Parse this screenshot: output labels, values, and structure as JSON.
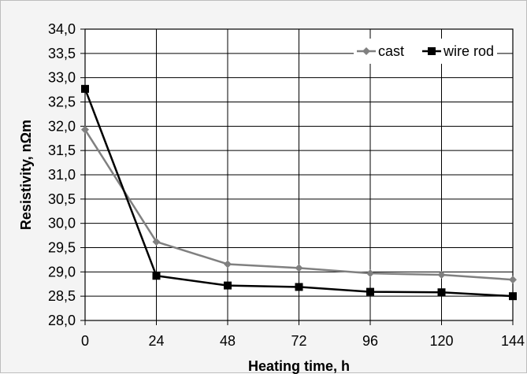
{
  "chart_data": {
    "type": "line",
    "title": "",
    "xlabel": "Heating time, h",
    "ylabel": "Resistivity, nΩm",
    "x": [
      0,
      24,
      48,
      72,
      96,
      120,
      144
    ],
    "x_tick_labels": [
      "0",
      "24",
      "48",
      "72",
      "96",
      "120",
      "144"
    ],
    "y_tick_labels": [
      "28,0",
      "28,5",
      "29,0",
      "29,5",
      "30,0",
      "30,5",
      "31,0",
      "31,5",
      "32,0",
      "32,5",
      "33,0",
      "33,5",
      "34,0"
    ],
    "xlim": [
      0,
      144
    ],
    "ylim": [
      28.0,
      34.0
    ],
    "grid": true,
    "legend_position": "top-right",
    "series": [
      {
        "name": "cast",
        "values": [
          31.93,
          29.62,
          29.16,
          29.08,
          28.97,
          28.94,
          28.84
        ],
        "color": "#808080",
        "marker": "diamond"
      },
      {
        "name": "wire rod",
        "values": [
          32.77,
          28.92,
          28.72,
          28.69,
          28.59,
          28.58,
          28.5
        ],
        "color": "#000000",
        "marker": "square"
      }
    ]
  }
}
